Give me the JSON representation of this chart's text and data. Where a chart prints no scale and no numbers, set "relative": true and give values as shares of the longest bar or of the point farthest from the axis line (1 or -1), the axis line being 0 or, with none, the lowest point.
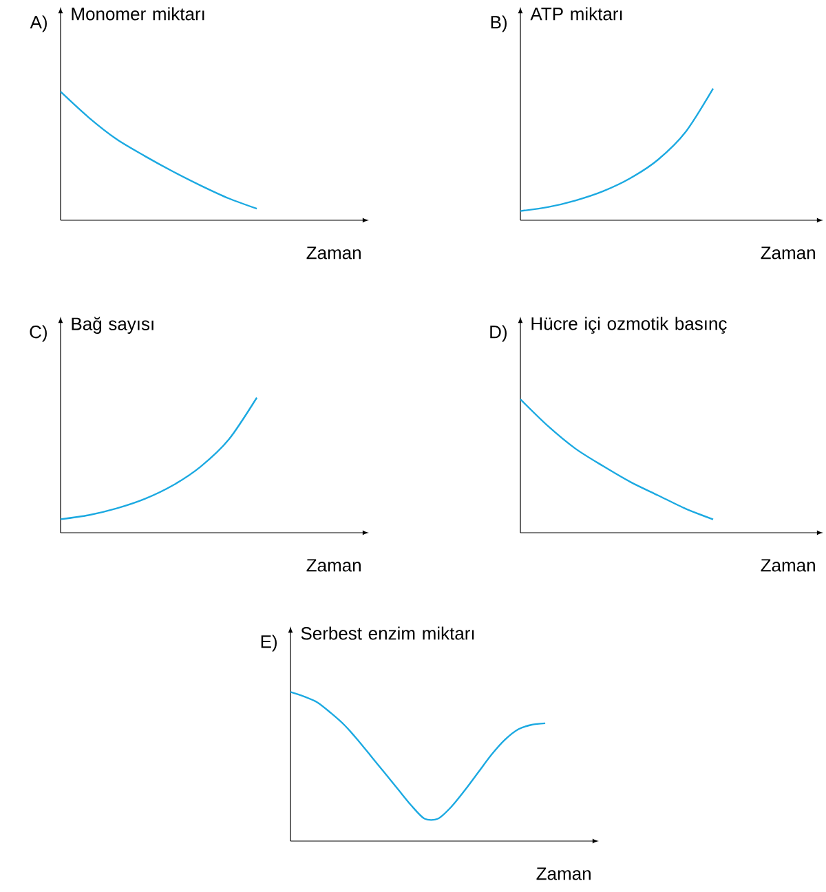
{
  "chart_data": [
    {
      "type": "line",
      "relative": true,
      "title": "A)",
      "ylabel": "Monomer miktarı",
      "xlabel": "Zaman",
      "color": "#1ba9e1",
      "categories": [
        null,
        null,
        null,
        null,
        null,
        null,
        null,
        null,
        null,
        null,
        null,
        null
      ],
      "values": [
        1,
        0.8,
        0.63,
        0.5,
        0.38,
        0.27,
        0.17,
        0.09,
        null,
        null,
        null,
        null
      ]
    },
    {
      "type": "line",
      "relative": true,
      "title": "B)",
      "ylabel": "ATP miktarı",
      "xlabel": "Zaman",
      "color": "#1ba9e1",
      "categories": [
        null,
        null,
        null,
        null,
        null,
        null,
        null,
        null,
        null,
        null,
        null,
        null
      ],
      "values": [
        0.07,
        0.1,
        0.15,
        0.22,
        0.32,
        0.46,
        0.67,
        1,
        null,
        null,
        null,
        null
      ]
    },
    {
      "type": "line",
      "relative": true,
      "title": "C)",
      "ylabel": "Bağ sayısı",
      "xlabel": "Zaman",
      "color": "#1ba9e1",
      "categories": [
        null,
        null,
        null,
        null,
        null,
        null,
        null,
        null,
        null,
        null,
        null,
        null
      ],
      "values": [
        0.1,
        0.13,
        0.18,
        0.25,
        0.35,
        0.49,
        0.69,
        1,
        null,
        null,
        null,
        null
      ]
    },
    {
      "type": "line",
      "relative": true,
      "title": "D)",
      "ylabel": "Hücre içi ozmotik basınç",
      "xlabel": "Zaman",
      "color": "#1ba9e1",
      "categories": [
        null,
        null,
        null,
        null,
        null,
        null,
        null,
        null,
        null,
        null,
        null,
        null
      ],
      "values": [
        1,
        0.8,
        0.63,
        0.5,
        0.38,
        0.28,
        0.18,
        0.1,
        null,
        null,
        null,
        null
      ]
    },
    {
      "type": "line",
      "relative": true,
      "title": "E)",
      "ylabel": "Serbest enzim miktarı",
      "xlabel": "Zaman",
      "color": "#1ba9e1",
      "categories": [
        null,
        null,
        null,
        null,
        null,
        null,
        null,
        null,
        null,
        null,
        null,
        null,
        null,
        null,
        null,
        null,
        null,
        null,
        null,
        null,
        null,
        null,
        null,
        null
      ],
      "values": [
        1,
        0.97,
        0.93,
        0.86,
        0.78,
        0.68,
        0.57,
        0.46,
        0.35,
        0.24,
        0.15,
        0.15,
        0.23,
        0.34,
        0.46,
        0.58,
        0.68,
        0.75,
        0.78,
        0.79,
        null,
        null,
        null,
        null
      ]
    }
  ]
}
